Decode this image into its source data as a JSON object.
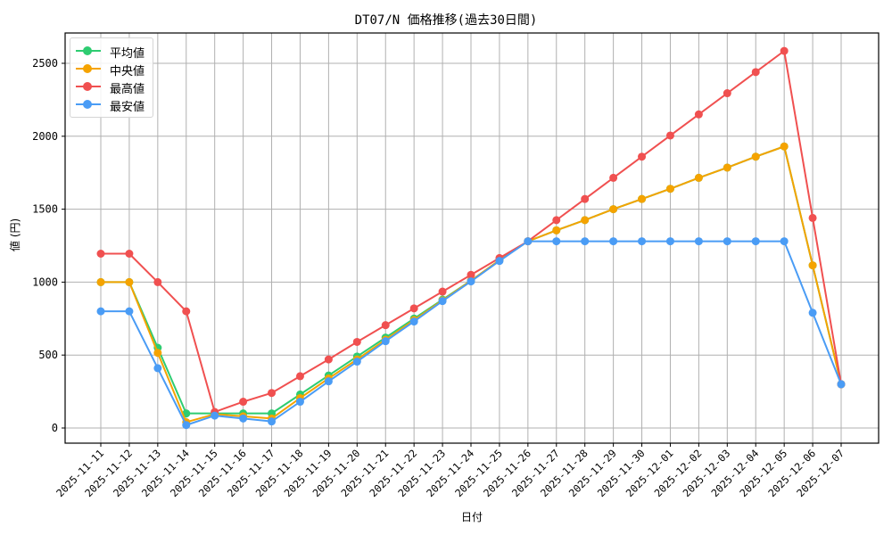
{
  "chart_data": {
    "type": "line",
    "title": "DT07/N 価格推移(過去30日間)",
    "xlabel": "日付",
    "ylabel": "値 (円)",
    "ylim": [
      -100,
      2700
    ],
    "yticks": [
      0,
      500,
      1000,
      1500,
      2000,
      2500
    ],
    "grid": true,
    "legend_position": "upper left",
    "categories": [
      "2025-11-11",
      "2025-11-12",
      "2025-11-13",
      "2025-11-14",
      "2025-11-15",
      "2025-11-16",
      "2025-11-17",
      "2025-11-18",
      "2025-11-19",
      "2025-11-20",
      "2025-11-21",
      "2025-11-22",
      "2025-11-23",
      "2025-11-24",
      "2025-11-25",
      "2025-11-26",
      "2025-11-27",
      "2025-11-28",
      "2025-11-29",
      "2025-11-30",
      "2025-12-01",
      "2025-12-02",
      "2025-12-03",
      "2025-12-04",
      "2025-12-05",
      "2025-12-06",
      "2025-12-07"
    ],
    "series": [
      {
        "name": "平均値",
        "color": "#2ecc71",
        "values": [
          1000,
          1000,
          550,
          100,
          100,
          100,
          100,
          230,
          360,
          490,
          620,
          750,
          880,
          1010,
          1150,
          1280,
          1355,
          1425,
          1500,
          1570,
          1640,
          1715,
          1785,
          1860,
          1930,
          1115,
          300
        ]
      },
      {
        "name": "中央値",
        "color": "#f5a300",
        "values": [
          1000,
          1000,
          515,
          40,
          95,
          80,
          65,
          205,
          340,
          470,
          605,
          740,
          875,
          1010,
          1150,
          1280,
          1355,
          1425,
          1500,
          1570,
          1640,
          1715,
          1785,
          1860,
          1930,
          1115,
          300
        ]
      },
      {
        "name": "最高値",
        "color": "#f05050",
        "values": [
          1195,
          1195,
          1000,
          800,
          110,
          180,
          240,
          355,
          470,
          590,
          705,
          820,
          935,
          1050,
          1165,
          1280,
          1425,
          1570,
          1715,
          1860,
          2005,
          2150,
          2295,
          2440,
          2585,
          1440,
          300
        ]
      },
      {
        "name": "最安値",
        "color": "#4a9cf5",
        "values": [
          800,
          800,
          410,
          20,
          85,
          65,
          45,
          180,
          320,
          455,
          595,
          730,
          870,
          1005,
          1145,
          1280,
          1280,
          1280,
          1280,
          1280,
          1280,
          1280,
          1280,
          1280,
          1280,
          790,
          300
        ]
      }
    ]
  },
  "legend": {
    "items": [
      {
        "label": "平均値",
        "color": "#2ecc71"
      },
      {
        "label": "中央値",
        "color": "#f5a300"
      },
      {
        "label": "最高値",
        "color": "#f05050"
      },
      {
        "label": "最安値",
        "color": "#4a9cf5"
      }
    ]
  }
}
